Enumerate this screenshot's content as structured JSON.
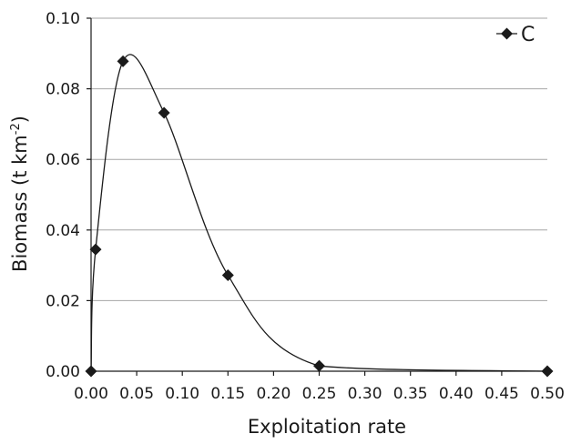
{
  "chart_data": {
    "type": "scatter",
    "title": "",
    "xlabel": "Exploitation rate",
    "ylabel_main": "Biomass (t km",
    "ylabel_sup": "-2",
    "ylabel_close": ")",
    "xlim": [
      0,
      0.5
    ],
    "ylim": [
      0,
      0.1
    ],
    "xticks": [
      0.0,
      0.05,
      0.1,
      0.15,
      0.2,
      0.25,
      0.3,
      0.35,
      0.4,
      0.45,
      0.5
    ],
    "xtick_labels": [
      "0.00",
      "0.05",
      "0.10",
      "0.15",
      "0.20",
      "0.25",
      "0.30",
      "0.35",
      "0.40",
      "0.45",
      "0.50"
    ],
    "yticks": [
      0.0,
      0.02,
      0.04,
      0.06,
      0.08,
      0.1
    ],
    "ytick_labels": [
      "0.00",
      "0.02",
      "0.04",
      "0.06",
      "0.08",
      "0.10"
    ],
    "grid": "horizontal",
    "legend_position": "top-right",
    "series": [
      {
        "name": "C",
        "marker": "diamond",
        "color": "#1a1a1a",
        "line": "smoothed",
        "x": [
          0.0,
          0.005,
          0.035,
          0.08,
          0.15,
          0.25,
          0.5
        ],
        "y": [
          0.0,
          0.0345,
          0.0878,
          0.0732,
          0.0272,
          0.0015,
          0.0
        ]
      }
    ]
  }
}
